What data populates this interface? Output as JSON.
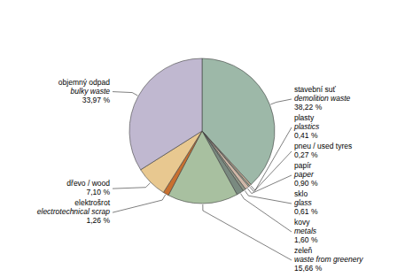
{
  "chart_data": {
    "type": "pie",
    "categories": [
      "stavební suť",
      "plasty",
      "pneu / used tyres",
      "papír",
      "sklo",
      "kovy",
      "zeleň",
      "elektrošrot",
      "dřevo / wood",
      "objemný odpad"
    ],
    "translations": [
      "demolition waste",
      "plastics",
      null,
      "paper",
      "glass",
      "metals",
      "waste from greenery",
      "electrotechnical scrap",
      null,
      "bulky waste"
    ],
    "values": [
      38.22,
      0.41,
      0.27,
      0.9,
      0.61,
      1.6,
      15.66,
      1.26,
      7.1,
      33.97
    ],
    "value_labels": [
      "38,22 %",
      "0,41 %",
      "0,27 %",
      "0,90 %",
      "0,61 %",
      "1,60 %",
      "15,66 %",
      "1,26 %",
      "7,10 %",
      "33,97 %"
    ],
    "colors": [
      "#9db8a8",
      "#c8b09a",
      "#b0c0a8",
      "#d0b8a8",
      "#909888",
      "#7a8a80",
      "#a8c0a0",
      "#c87030",
      "#e8c890",
      "#c0b8d0"
    ]
  }
}
